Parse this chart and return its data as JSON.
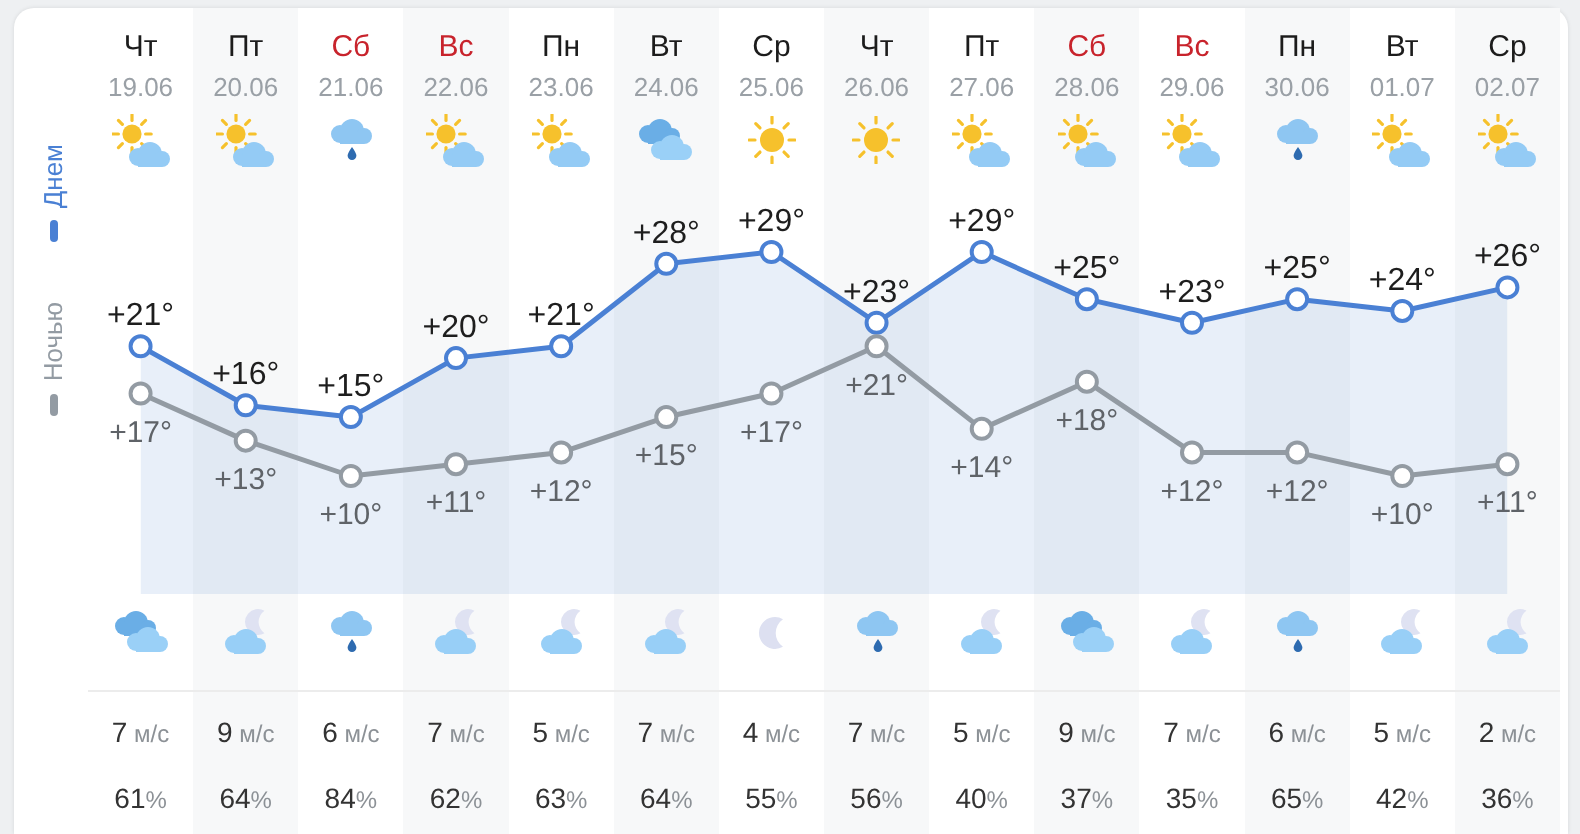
{
  "chart_data": [
    {
      "type": "line",
      "categories": [
        "Чт\n19.06",
        "Пт\n20.06",
        "Сб\n21.06",
        "Вс\n22.06",
        "Пн\n23.06",
        "Вт\n24.06",
        "Ср\n25.06",
        "Чт\n26.06",
        "Пт\n27.06",
        "Сб\n28.06",
        "Вс\n29.06",
        "Пн\n30.06",
        "Вт\n01.07",
        "Ср\n02.07"
      ],
      "series": [
        {
          "name": "Днем",
          "type": "area",
          "color": "#4a80d4",
          "values": [
            21,
            16,
            15,
            20,
            21,
            28,
            29,
            23,
            29,
            25,
            23,
            25,
            24,
            26
          ],
          "value_labels": [
            "+21°",
            "+16°",
            "+15°",
            "+20°",
            "+21°",
            "+28°",
            "+29°",
            "+23°",
            "+29°",
            "+25°",
            "+23°",
            "+25°",
            "+24°",
            "+26°"
          ]
        },
        {
          "name": "Ночью",
          "color": "#939ba3",
          "values": [
            17,
            13,
            10,
            11,
            12,
            15,
            17,
            21,
            14,
            18,
            12,
            12,
            10,
            11
          ],
          "value_labels": [
            "+17°",
            "+13°",
            "+10°",
            "+11°",
            "+12°",
            "+15°",
            "+17°",
            "+21°",
            "+14°",
            "+18°",
            "+12°",
            "+12°",
            "+10°",
            "+11°"
          ]
        }
      ],
      "legend": "left",
      "marker": "circle",
      "tick_labels": "x"
    },
    {
      "type": "other",
      "values": [
        7,
        9,
        6,
        7,
        5,
        7,
        4,
        7,
        5,
        9,
        7,
        6,
        5,
        2
      ],
      "value_labels": [
        "7 м/с",
        "9 м/с",
        "6 м/с",
        "7 м/с",
        "5 м/с",
        "7 м/с",
        "4 м/с",
        "7 м/с",
        "5 м/с",
        "9 м/с",
        "7 м/с",
        "6 м/с",
        "5 м/с",
        "2 м/с"
      ]
    },
    {
      "type": "other",
      "values": [
        61,
        64,
        84,
        62,
        63,
        64,
        55,
        56,
        40,
        37,
        35,
        65,
        42,
        36
      ],
      "value_labels": [
        "61%",
        "64%",
        "84%",
        "62%",
        "63%",
        "64%",
        "55%",
        "56%",
        "40%",
        "37%",
        "35%",
        "65%",
        "42%",
        "36%"
      ]
    }
  ]
}
